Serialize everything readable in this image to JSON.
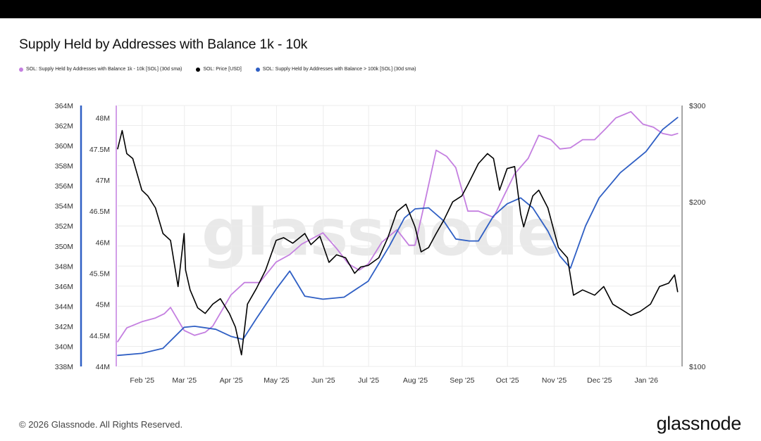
{
  "title": "Supply Held by Addresses with Balance 1k - 10k",
  "legend": [
    {
      "label": "SOL: Supply Held by Addresses with Balance 1k - 10k [SOL] (30d sma)",
      "color": "#c47fe0"
    },
    {
      "label": "SOL: Price [USD]",
      "color": "#000000"
    },
    {
      "label": "SOL: Supply Held by Addresses with Balance > 100k [SOL] (30d sma)",
      "color": "#2f5fc4"
    }
  ],
  "watermark": "glassnode",
  "footer": {
    "copyright": "© 2026 Glassnode. All Rights Reserved.",
    "logo": "glassnode"
  },
  "chart_data": {
    "type": "line",
    "x_range": [
      "2025-01-16",
      "2026-01-24"
    ],
    "x_ticks": [
      "Feb '25",
      "Mar '25",
      "Apr '25",
      "May '25",
      "Jun '25",
      "Jul '25",
      "Aug '25",
      "Sep '25",
      "Oct '25",
      "Nov '25",
      "Dec '25",
      "Jan '26"
    ],
    "axes": {
      "left_outer": {
        "series": "SOL: Supply Held by Addresses with Balance > 100k [SOL] (30d sma)",
        "range": [
          338,
          364
        ],
        "unit": "M",
        "ticks": [
          "338M",
          "340M",
          "342M",
          "344M",
          "346M",
          "348M",
          "350M",
          "352M",
          "354M",
          "356M",
          "358M",
          "360M",
          "362M",
          "364M"
        ],
        "color": "#2f5fc4"
      },
      "left_inner": {
        "series": "SOL: Supply Held by Addresses with Balance 1k - 10k [SOL] (30d sma)",
        "range": [
          44,
          48.2
        ],
        "unit": "M",
        "ticks": [
          "44M",
          "44.5M",
          "45M",
          "45.5M",
          "46M",
          "46.5M",
          "47M",
          "47.5M",
          "48M"
        ],
        "color": "#c47fe0"
      },
      "right": {
        "series": "SOL: Price [USD]",
        "scale": "log",
        "range": [
          100,
          300
        ],
        "ticks": [
          "$100",
          "$200",
          "$300"
        ]
      }
    },
    "grid": true,
    "legend_position": "top-left",
    "series": [
      {
        "name": "SOL: Supply Held by Addresses with Balance > 100k [SOL] (30d sma)",
        "axis": "left_outer",
        "color": "#2f5fc4",
        "x": [
          "2025-01-16",
          "2025-02-01",
          "2025-02-15",
          "2025-03-01",
          "2025-03-08",
          "2025-03-22",
          "2025-04-01",
          "2025-04-09",
          "2025-04-18",
          "2025-05-01",
          "2025-05-10",
          "2025-05-20",
          "2025-06-01",
          "2025-06-15",
          "2025-07-01",
          "2025-07-15",
          "2025-07-25",
          "2025-08-01",
          "2025-08-10",
          "2025-08-20",
          "2025-08-28",
          "2025-09-06",
          "2025-09-12",
          "2025-09-22",
          "2025-10-01",
          "2025-10-10",
          "2025-10-18",
          "2025-10-28",
          "2025-11-05",
          "2025-11-12",
          "2025-11-22",
          "2025-12-01",
          "2025-12-15",
          "2026-01-01",
          "2026-01-12",
          "2026-01-22"
        ],
        "y": [
          339.1,
          339.3,
          339.8,
          341.9,
          342.0,
          341.7,
          341.0,
          340.7,
          342.8,
          345.7,
          347.5,
          345.0,
          344.7,
          344.9,
          346.5,
          350.0,
          352.8,
          353.7,
          353.8,
          352.5,
          350.7,
          350.5,
          350.5,
          353.0,
          354.2,
          354.8,
          353.8,
          351.5,
          349.0,
          347.8,
          352.0,
          354.8,
          357.3,
          359.4,
          361.6,
          362.8
        ]
      },
      {
        "name": "SOL: Supply Held by Addresses with Balance 1k - 10k [SOL] (30d sma)",
        "axis": "left_inner",
        "color": "#c47fe0",
        "x": [
          "2025-01-16",
          "2025-01-22",
          "2025-02-01",
          "2025-02-10",
          "2025-02-16",
          "2025-02-20",
          "2025-03-01",
          "2025-03-08",
          "2025-03-15",
          "2025-03-20",
          "2025-04-01",
          "2025-04-10",
          "2025-04-20",
          "2025-05-01",
          "2025-05-10",
          "2025-05-18",
          "2025-06-01",
          "2025-06-10",
          "2025-06-18",
          "2025-06-25",
          "2025-07-01",
          "2025-07-10",
          "2025-07-20",
          "2025-07-28",
          "2025-08-01",
          "2025-08-08",
          "2025-08-15",
          "2025-08-22",
          "2025-08-28",
          "2025-09-05",
          "2025-09-12",
          "2025-09-22",
          "2025-09-30",
          "2025-10-06",
          "2025-10-15",
          "2025-10-22",
          "2025-10-30",
          "2025-11-05",
          "2025-11-12",
          "2025-11-20",
          "2025-11-28",
          "2025-12-05",
          "2025-12-12",
          "2025-12-22",
          "2025-12-30",
          "2026-01-06",
          "2026-01-12",
          "2026-01-18",
          "2026-01-22"
        ],
        "y": [
          44.4,
          44.62,
          44.72,
          44.78,
          44.85,
          44.95,
          44.58,
          44.5,
          44.55,
          44.65,
          45.15,
          45.35,
          45.35,
          45.68,
          45.8,
          45.97,
          46.15,
          45.9,
          45.65,
          45.55,
          45.65,
          46.0,
          46.2,
          45.95,
          45.95,
          46.7,
          47.48,
          47.38,
          47.2,
          46.5,
          46.5,
          46.4,
          46.8,
          47.1,
          47.35,
          47.72,
          47.65,
          47.5,
          47.52,
          47.65,
          47.65,
          47.82,
          48.0,
          48.1,
          47.9,
          47.85,
          47.75,
          47.72,
          47.75
        ]
      },
      {
        "name": "SOL: Price [USD]",
        "axis": "right",
        "color": "#000000",
        "x": [
          "2025-01-16",
          "2025-01-19",
          "2025-01-22",
          "2025-01-26",
          "2025-02-01",
          "2025-02-05",
          "2025-02-10",
          "2025-02-15",
          "2025-02-20",
          "2025-02-25",
          "2025-03-01",
          "2025-03-02",
          "2025-03-05",
          "2025-03-10",
          "2025-03-15",
          "2025-03-20",
          "2025-03-25",
          "2025-03-31",
          "2025-04-04",
          "2025-04-08",
          "2025-04-12",
          "2025-04-18",
          "2025-04-24",
          "2025-05-01",
          "2025-05-06",
          "2025-05-12",
          "2025-05-20",
          "2025-05-24",
          "2025-05-30",
          "2025-06-05",
          "2025-06-10",
          "2025-06-16",
          "2025-06-22",
          "2025-06-26",
          "2025-07-01",
          "2025-07-08",
          "2025-07-14",
          "2025-07-20",
          "2025-07-26",
          "2025-08-01",
          "2025-08-05",
          "2025-08-10",
          "2025-08-15",
          "2025-08-20",
          "2025-08-26",
          "2025-09-01",
          "2025-09-05",
          "2025-09-12",
          "2025-09-18",
          "2025-09-22",
          "2025-09-26",
          "2025-10-01",
          "2025-10-06",
          "2025-10-10",
          "2025-10-12",
          "2025-10-18",
          "2025-10-22",
          "2025-10-28",
          "2025-11-04",
          "2025-11-10",
          "2025-11-14",
          "2025-11-20",
          "2025-11-28",
          "2025-12-04",
          "2025-12-10",
          "2025-12-16",
          "2025-12-22",
          "2025-12-28",
          "2026-01-04",
          "2026-01-10",
          "2026-01-16",
          "2026-01-20",
          "2026-01-22"
        ],
        "y": [
          250,
          270,
          245,
          240,
          210,
          205,
          195,
          175,
          170,
          140,
          175,
          150,
          138,
          128,
          125,
          130,
          133,
          125,
          118,
          105,
          130,
          139,
          150,
          170,
          172,
          168,
          175,
          167,
          173,
          155,
          160,
          158,
          148,
          152,
          153,
          158,
          172,
          192,
          198,
          180,
          162,
          165,
          175,
          185,
          200,
          205,
          215,
          235,
          245,
          240,
          210,
          230,
          232,
          190,
          180,
          205,
          210,
          195,
          165,
          158,
          135,
          138,
          135,
          140,
          130,
          127,
          124,
          126,
          130,
          140,
          142,
          147,
          137
        ]
      }
    ]
  }
}
